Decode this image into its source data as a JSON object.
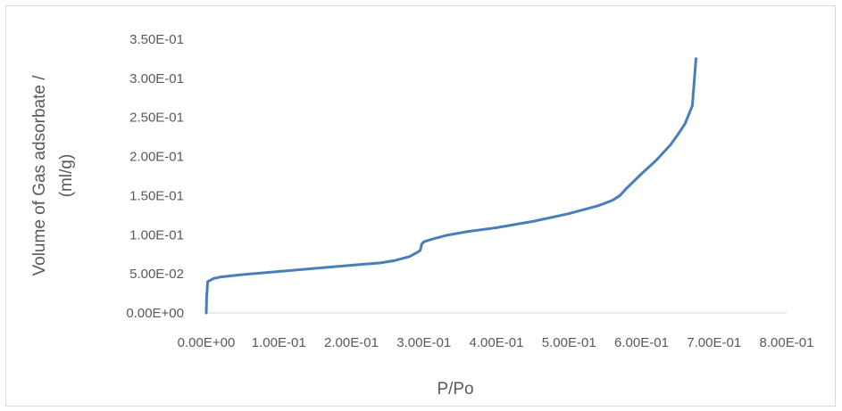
{
  "chart_data": {
    "type": "line",
    "title": "",
    "xlabel": "P/Po",
    "ylabel_lines": [
      "Volume of Gas adsorbate /",
      "(ml/g)"
    ],
    "xlim": [
      0,
      0.8
    ],
    "ylim": [
      0,
      0.35
    ],
    "x_ticks": [
      "0.00E+00",
      "1.00E-01",
      "2.00E-01",
      "3.00E-01",
      "4.00E-01",
      "5.00E-01",
      "6.00E-01",
      "7.00E-01",
      "8.00E-01"
    ],
    "y_ticks": [
      "0.00E+00",
      "5.00E-02",
      "1.00E-01",
      "1.50E-01",
      "2.00E-01",
      "2.50E-01",
      "3.00E-01",
      "3.50E-01"
    ],
    "x_tick_values": [
      0,
      0.1,
      0.2,
      0.3,
      0.4,
      0.5,
      0.6,
      0.7,
      0.8
    ],
    "y_tick_values": [
      0,
      0.05,
      0.1,
      0.15,
      0.2,
      0.25,
      0.3,
      0.35
    ],
    "grid": false,
    "legend": "none",
    "series": [
      {
        "color": "#4a7ebb",
        "x": [
          0.0,
          0.0005,
          0.002,
          0.01,
          0.02,
          0.05,
          0.1,
          0.15,
          0.2,
          0.24,
          0.26,
          0.28,
          0.29,
          0.295,
          0.297,
          0.3,
          0.31,
          0.33,
          0.36,
          0.4,
          0.45,
          0.5,
          0.54,
          0.56,
          0.57,
          0.58,
          0.6,
          0.62,
          0.64,
          0.65,
          0.66,
          0.67,
          0.675
        ],
        "y": [
          0.0,
          0.02,
          0.04,
          0.044,
          0.046,
          0.049,
          0.053,
          0.057,
          0.061,
          0.064,
          0.067,
          0.072,
          0.077,
          0.08,
          0.088,
          0.091,
          0.094,
          0.099,
          0.104,
          0.109,
          0.117,
          0.127,
          0.137,
          0.144,
          0.15,
          0.16,
          0.178,
          0.195,
          0.215,
          0.228,
          0.242,
          0.265,
          0.325
        ]
      }
    ]
  }
}
